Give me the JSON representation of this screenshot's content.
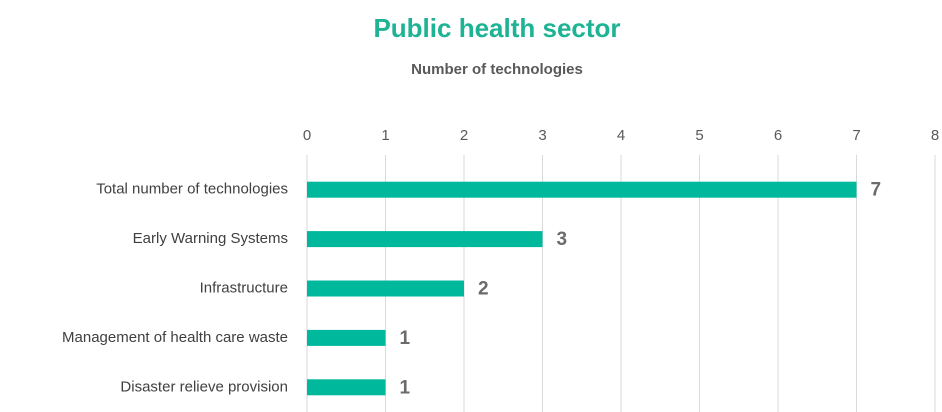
{
  "chart_data": {
    "type": "bar",
    "orientation": "horizontal",
    "title": "Public health sector",
    "subtitle": "Number of technologies",
    "categories": [
      "Total number of technologies",
      "Early Warning Systems",
      "Infrastructure",
      "Management of health care waste",
      "Disaster relieve provision"
    ],
    "values": [
      7,
      3,
      2,
      1,
      1
    ],
    "color": "#00b89c",
    "xlim": [
      0,
      8
    ],
    "xticks": [
      0,
      1,
      2,
      3,
      4,
      5,
      6,
      7,
      8
    ],
    "grid": true
  }
}
